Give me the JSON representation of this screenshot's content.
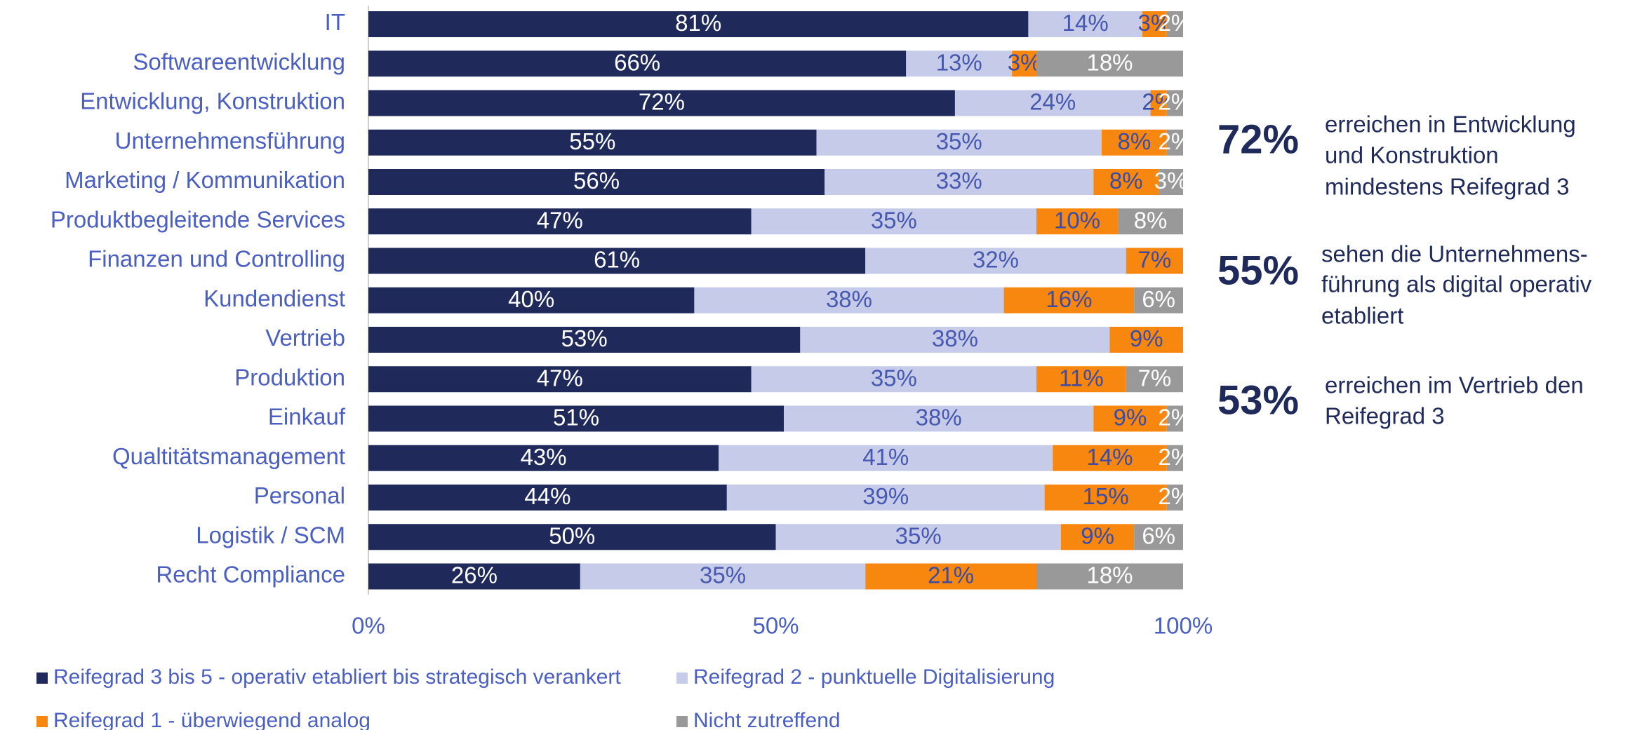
{
  "chart_data": {
    "type": "stacked_barh",
    "categories": [
      "IT",
      "Softwareentwicklung",
      "Entwicklung, Konstruktion",
      "Unternehmensführung",
      "Marketing / Kommunikation",
      "Produktbegleitende Services",
      "Finanzen und Controlling",
      "Kundendienst",
      "Vertrieb",
      "Produktion",
      "Einkauf",
      "Qualtitätsmanagement",
      "Personal",
      "Logistik / SCM",
      "Recht Compliance"
    ],
    "series": [
      {
        "name": "Reifegrad 3 bis 5 - operativ etabliert bis strategisch verankert",
        "color": "#1f2a5a",
        "label_color": "#ffffff",
        "values": [
          81,
          66,
          72,
          55,
          56,
          47,
          61,
          40,
          53,
          47,
          51,
          43,
          44,
          50,
          26
        ],
        "value_labels": [
          "81%",
          "66%",
          "72%",
          "55%",
          "56%",
          "47%",
          "61%",
          "40%",
          "53%",
          "47%",
          "51%",
          "43%",
          "44%",
          "50%",
          "26%"
        ]
      },
      {
        "name": "Reifegrad 2 - punktuelle Digitalisierung",
        "color": "#c5cbe9",
        "label_color": "#4658b0",
        "values": [
          14,
          13,
          24,
          35,
          33,
          35,
          32,
          38,
          38,
          35,
          38,
          41,
          39,
          35,
          35
        ],
        "value_labels": [
          "14%",
          "13%",
          "24%",
          "35%",
          "33%",
          "35%",
          "32%",
          "38%",
          "38%",
          "35%",
          "38%",
          "41%",
          "39%",
          "35%",
          "35%"
        ]
      },
      {
        "name": "Reifegrad 1 - überwiegend analog",
        "color": "#f7870f",
        "label_color": "#3a4ca6",
        "values": [
          3,
          3,
          2,
          8,
          8,
          10,
          7,
          16,
          9,
          11,
          9,
          14,
          15,
          9,
          21
        ],
        "value_labels": [
          "3%",
          "3%",
          "2%",
          "8%",
          "8%",
          "10%",
          "7%",
          "16%",
          "9%",
          "11%",
          "9%",
          "14%",
          "15%",
          "9%",
          "21%"
        ]
      },
      {
        "name": "Nicht zutreffend",
        "color": "#999999",
        "label_color": "#ffffff",
        "values": [
          2,
          18,
          2,
          2,
          3,
          8,
          null,
          6,
          null,
          7,
          2,
          2,
          2,
          6,
          18
        ],
        "value_labels": [
          "2%",
          "18%",
          "2%",
          "2%",
          "3%",
          "8%",
          null,
          "6%",
          null,
          "7%",
          "2%",
          "2%",
          "2%",
          "6%",
          "18%"
        ]
      }
    ],
    "xlim": [
      0,
      100
    ],
    "xticks": [
      {
        "value": 0,
        "label": "0%"
      },
      {
        "value": 50,
        "label": "50%"
      },
      {
        "value": 100,
        "label": "100%"
      }
    ],
    "grid": false,
    "legend": "bottom",
    "annotations": [
      {
        "value": "72%",
        "lines": [
          "erreichen in Entwicklung",
          "und Konstruktion",
          "mindestens Reifegrad 3"
        ]
      },
      {
        "value": "55%",
        "lines": [
          "sehen die Unternehmens-",
          "führung als digital operativ",
          "etabliert"
        ]
      },
      {
        "value": "53%",
        "lines": [
          "erreichen im Vertrieb den",
          "Reifegrad 3"
        ]
      }
    ]
  }
}
